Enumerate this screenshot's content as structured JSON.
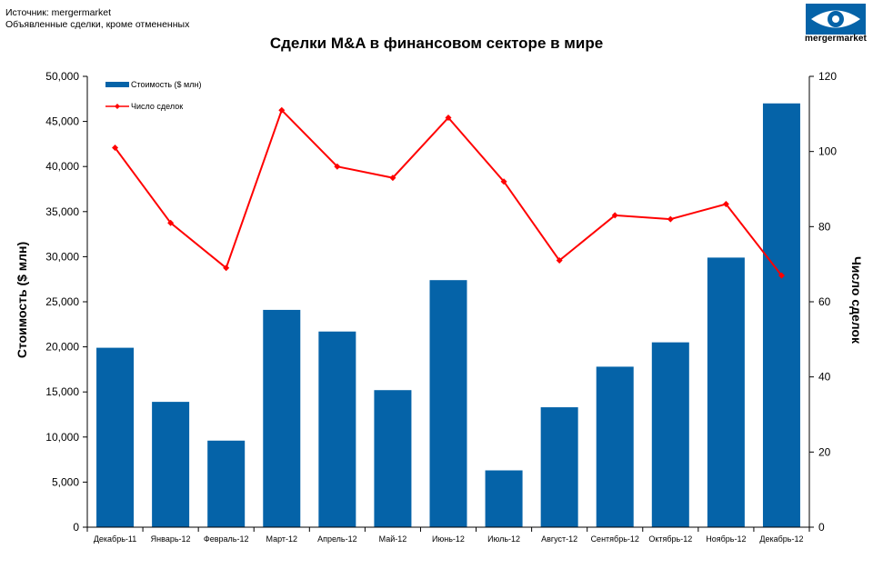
{
  "header": {
    "source": "Источник: mergermarket",
    "note": "Объявленные сделки, кроме отмененных",
    "logo_text": "mergermarket"
  },
  "chart_data": {
    "type": "bar",
    "title": "Сделки M&A в финансовом секторе в мире",
    "categories": [
      "Декабрь-11",
      "Январь-12",
      "Февраль-12",
      "Март-12",
      "Апрель-12",
      "Май-12",
      "Июнь-12",
      "Июль-12",
      "Август-12",
      "Сентябрь-12",
      "Октябрь-12",
      "Ноябрь-12",
      "Декабрь-12"
    ],
    "series": [
      {
        "name": "Стоимость ($ млн)",
        "type": "bar",
        "axis": "left",
        "color": "#0563a8",
        "values": [
          19900,
          13900,
          9600,
          24100,
          21700,
          15200,
          27400,
          6300,
          13300,
          17800,
          20500,
          29900,
          47000
        ]
      },
      {
        "name": "Число сделок",
        "type": "line",
        "axis": "right",
        "color": "#ff0000",
        "values": [
          101,
          81,
          69,
          111,
          96,
          93,
          109,
          92,
          71,
          83,
          82,
          86,
          67
        ]
      }
    ],
    "ylabel": "Стоимость ($ млн)",
    "y2label": "Число сделок",
    "ylim": [
      0,
      50000
    ],
    "y2lim": [
      0,
      120
    ],
    "yticks": [
      "0",
      "5,000",
      "10,000",
      "15,000",
      "20,000",
      "25,000",
      "30,000",
      "35,000",
      "40,000",
      "45,000",
      "50,000"
    ],
    "y2ticks": [
      "0",
      "20",
      "40",
      "60",
      "80",
      "100",
      "120"
    ],
    "legend_position": "top-left",
    "grid": false
  }
}
